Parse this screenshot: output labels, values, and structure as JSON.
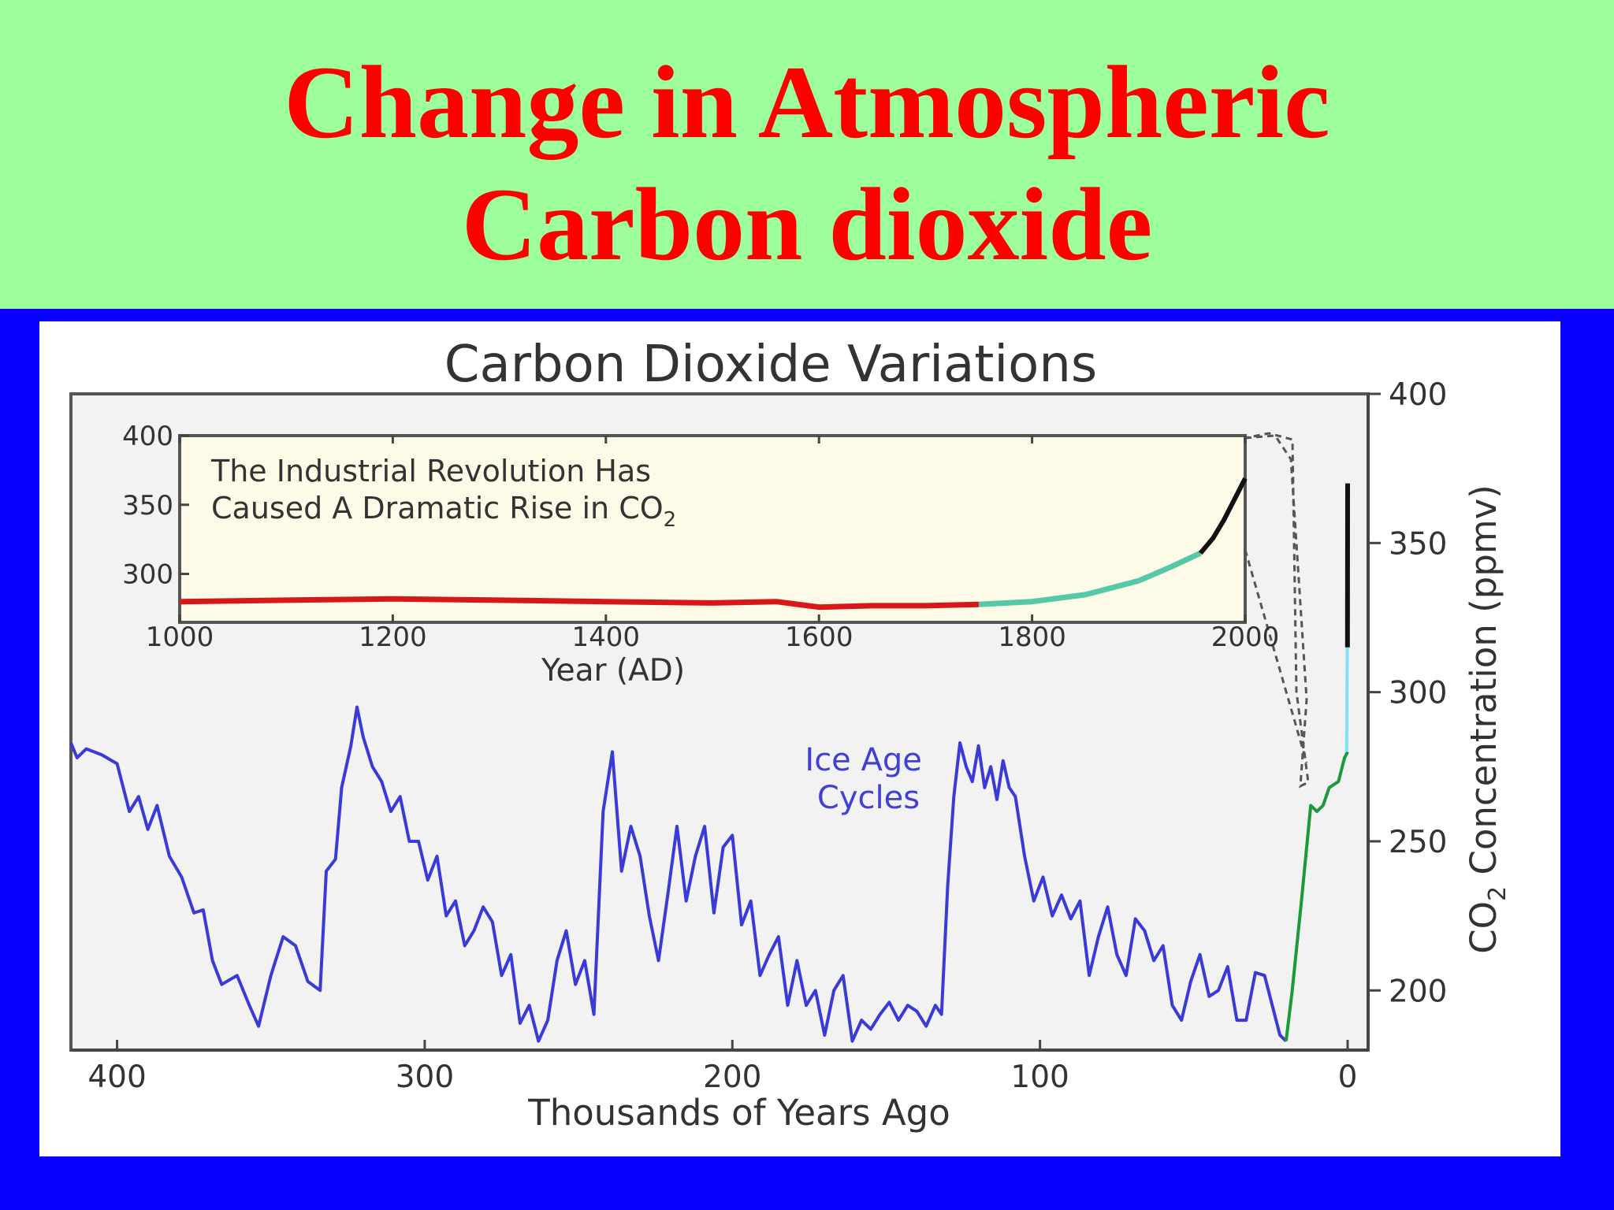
{
  "slide": {
    "title_line1": "Change in Atmospheric",
    "title_line2": "Carbon dioxide",
    "header_color": "#9cff9c",
    "title_color": "#ff0000",
    "frame_color": "#0a00ff"
  },
  "chart_data": [
    {
      "type": "line",
      "title": "Carbon Dioxide Variations",
      "xlabel": "Thousands of Years Ago",
      "ylabel": "CO2 Concentration (ppmv)",
      "xlim": [
        415,
        0
      ],
      "ylim": [
        180,
        400
      ],
      "x_ticks": [
        "400",
        "300",
        "200",
        "100",
        "0"
      ],
      "y_ticks": [
        "200",
        "250",
        "300",
        "350",
        "400"
      ],
      "y_axis_side": "right",
      "annotation": "Ice Age\nCycles",
      "grid": false,
      "series": [
        {
          "color": "#3a3ad8",
          "x": [
            415,
            413,
            410,
            405,
            400,
            396,
            393,
            390,
            387,
            383,
            379,
            375,
            372,
            369,
            366,
            361,
            357,
            354,
            350,
            346,
            342,
            338,
            334,
            332,
            329,
            327,
            324,
            322,
            320,
            317,
            314,
            311,
            308,
            305,
            302,
            299,
            296,
            293,
            290,
            287,
            284,
            281,
            278,
            275,
            272,
            269,
            266,
            263,
            260,
            257,
            254,
            251,
            248,
            245,
            242,
            239,
            236,
            233,
            230,
            227,
            224,
            221,
            218,
            215,
            212,
            209,
            206,
            203,
            200,
            197,
            194,
            191,
            188,
            185,
            182,
            179,
            176,
            173,
            170,
            167,
            164,
            161,
            158,
            155,
            152,
            149,
            146,
            143,
            140,
            137,
            134,
            132,
            130,
            128,
            126,
            124,
            122,
            120,
            118,
            116,
            114,
            112,
            110,
            108,
            105,
            102,
            99,
            96,
            93,
            90,
            87,
            84,
            81,
            78,
            75,
            72,
            69,
            66,
            63,
            60,
            57,
            54,
            51,
            48,
            45,
            42,
            39,
            36,
            33,
            30,
            27,
            24,
            22,
            20
          ],
          "y": [
            283,
            278,
            281,
            279,
            276,
            260,
            265,
            254,
            262,
            245,
            238,
            226,
            227,
            210,
            202,
            205,
            195,
            188,
            205,
            218,
            215,
            203,
            200,
            240,
            244,
            268,
            282,
            295,
            285,
            275,
            270,
            260,
            265,
            250,
            250,
            237,
            245,
            225,
            230,
            215,
            220,
            228,
            223,
            205,
            212,
            189,
            195,
            183,
            190,
            210,
            220,
            202,
            210,
            192,
            260,
            280,
            240,
            255,
            245,
            225,
            210,
            232,
            255,
            230,
            245,
            255,
            226,
            248,
            252,
            222,
            230,
            205,
            212,
            218,
            195,
            210,
            195,
            200,
            185,
            200,
            205,
            183,
            190,
            187,
            192,
            196,
            190,
            195,
            193,
            188,
            195,
            192,
            235,
            265,
            283,
            275,
            270,
            282,
            268,
            275,
            264,
            277,
            268,
            265,
            245,
            230,
            238,
            225,
            232,
            224,
            230,
            205,
            218,
            228,
            212,
            205,
            224,
            220,
            210,
            215,
            195,
            190,
            203,
            212,
            198,
            200,
            208,
            190,
            190,
            206,
            205,
            193,
            185,
            183
          ]
        },
        {
          "color": "#1a9a3a",
          "x": [
            20,
            18,
            15,
            12,
            10,
            8,
            6,
            3,
            1,
            0
          ],
          "y": [
            183,
            200,
            230,
            262,
            260,
            262,
            268,
            270,
            278,
            280
          ]
        },
        {
          "color": "#7fe0ff",
          "x": [
            0.3,
            0.2,
            0.1
          ],
          "y": [
            280,
            300,
            315
          ]
        },
        {
          "color": "#111111",
          "x": [
            0.06,
            0.0
          ],
          "y": [
            315,
            370
          ]
        }
      ]
    },
    {
      "type": "line",
      "title": "",
      "xlabel": "Year (AD)",
      "ylabel": "",
      "xlim": [
        1000,
        2000
      ],
      "ylim": [
        265,
        400
      ],
      "x_ticks": [
        "1000",
        "1200",
        "1400",
        "1600",
        "1800",
        "2000"
      ],
      "y_ticks": [
        "300",
        "350",
        "400"
      ],
      "annotation_line1": "The Industrial Revolution Has",
      "annotation_line2": "Caused A Dramatic Rise in CO",
      "annotation_sub": "2",
      "series": [
        {
          "color": "#d81818",
          "x": [
            1000,
            1100,
            1200,
            1300,
            1400,
            1500,
            1560,
            1600,
            1650,
            1700,
            1750
          ],
          "y": [
            280,
            281,
            282,
            281,
            280,
            279,
            280,
            276,
            277,
            277,
            278
          ]
        },
        {
          "color": "#55c8a8",
          "x": [
            1750,
            1800,
            1850,
            1900,
            1930,
            1958
          ],
          "y": [
            278,
            280,
            285,
            295,
            305,
            315
          ]
        },
        {
          "color": "#111111",
          "x": [
            1958,
            1970,
            1980,
            1990,
            2000
          ],
          "y": [
            315,
            326,
            339,
            354,
            369
          ]
        }
      ]
    }
  ]
}
